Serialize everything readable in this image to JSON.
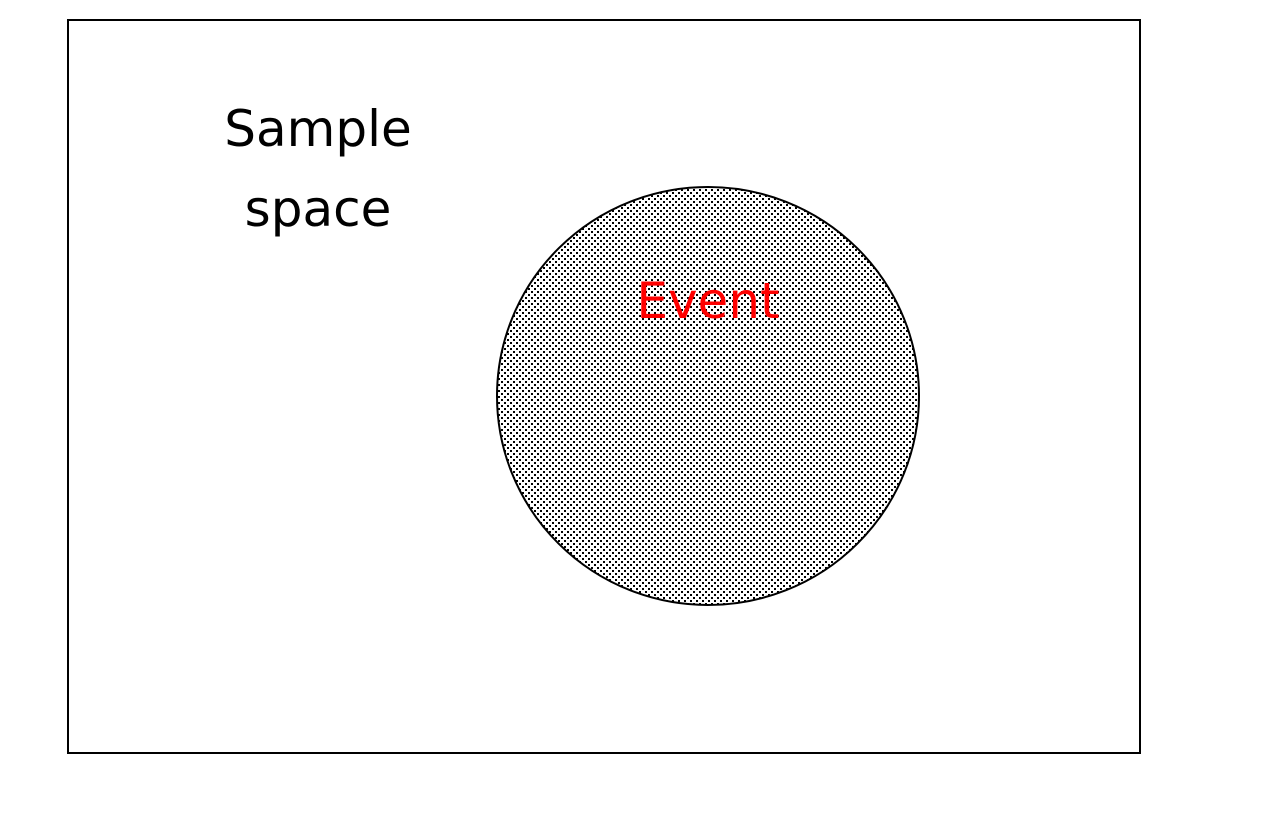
{
  "sample_space": {
    "label_line1": "Sample",
    "label_line2": "space",
    "border_color": "#000000"
  },
  "event": {
    "label": "Event",
    "label_color": "#ff0000",
    "fill_pattern": "dotted-stipple"
  }
}
